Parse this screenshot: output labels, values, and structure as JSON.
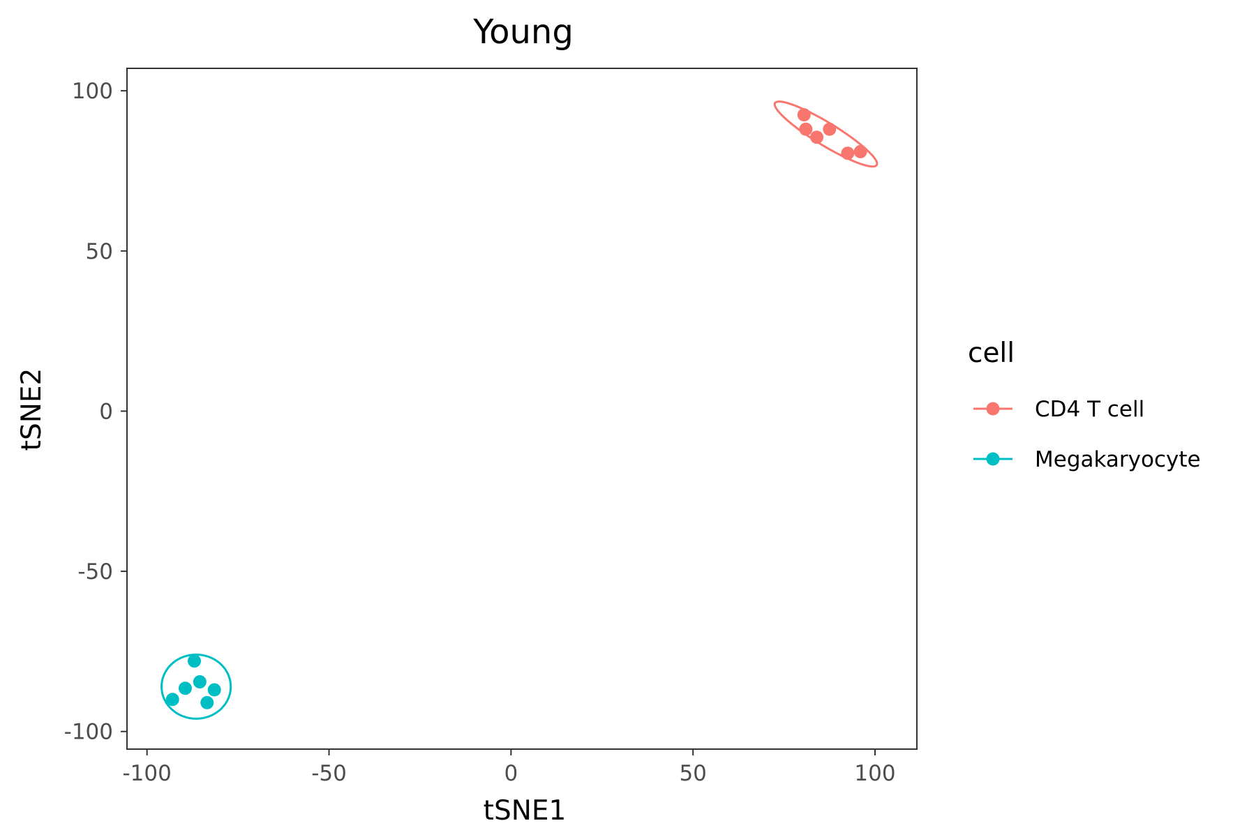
{
  "chart_data": {
    "type": "scatter",
    "title": "Young",
    "xlabel": "tSNE1",
    "ylabel": "tSNE2",
    "xlim": [
      -105.5,
      111.5
    ],
    "ylim": [
      -105.5,
      107
    ],
    "x_ticks": [
      -100,
      -50,
      0,
      50,
      100
    ],
    "y_ticks": [
      -100,
      -50,
      0,
      50,
      100
    ],
    "grid": false,
    "legend": {
      "title": "cell",
      "position": "right"
    },
    "series": [
      {
        "name": "CD4 T cell",
        "color": "#F8766D",
        "points": [
          {
            "x": 80.5,
            "y": 92.5
          },
          {
            "x": 81,
            "y": 88
          },
          {
            "x": 84,
            "y": 85.5
          },
          {
            "x": 87.5,
            "y": 88
          },
          {
            "x": 92.5,
            "y": 80.5
          },
          {
            "x": 96,
            "y": 81
          }
        ],
        "ellipse": {
          "cx": 86.5,
          "cy": 86.5,
          "rx": 17,
          "ry": 3.4,
          "angle_deg": -35
        }
      },
      {
        "name": "Megakaryocyte",
        "color": "#00BFC4",
        "points": [
          {
            "x": -87,
            "y": -78
          },
          {
            "x": -85.5,
            "y": -84.5
          },
          {
            "x": -89.5,
            "y": -86.5
          },
          {
            "x": -81.5,
            "y": -87
          },
          {
            "x": -93,
            "y": -90
          },
          {
            "x": -83.5,
            "y": -91
          }
        ],
        "ellipse": {
          "cx": -86.5,
          "cy": -86,
          "rx": 9.5,
          "ry": 10,
          "angle_deg": 0
        }
      }
    ]
  }
}
